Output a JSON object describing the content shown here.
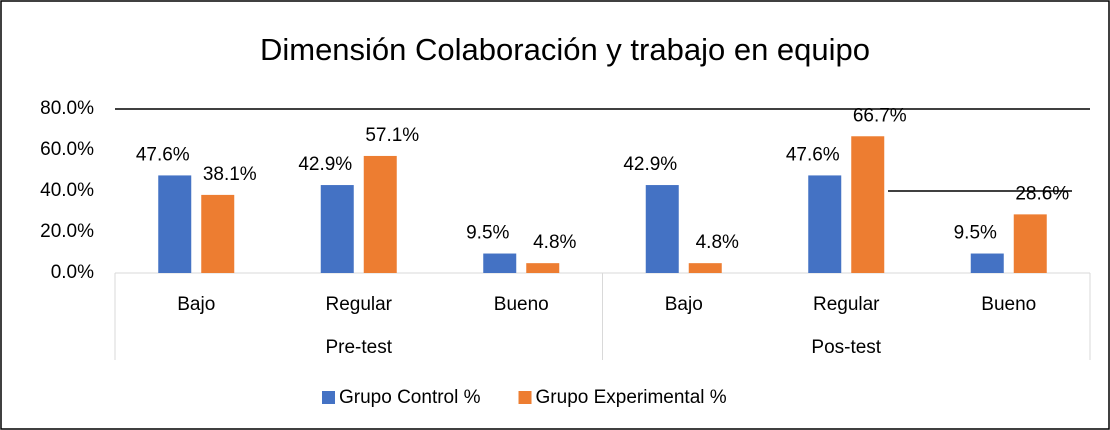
{
  "chart_data": {
    "type": "bar",
    "title": "Dimensión  Colaboración y trabajo en equipo",
    "categories": [
      "Bajo",
      "Regular",
      "Bueno",
      "Bajo",
      "Regular",
      "Bueno"
    ],
    "groups": [
      "Pre-test",
      "Pos-test"
    ],
    "series": [
      {
        "name": "Grupo Control %",
        "color": "#4472c4",
        "values": [
          47.6,
          42.9,
          9.5,
          42.9,
          47.6,
          9.5
        ],
        "value_labels": [
          "47.6%",
          "42.9%",
          "9.5%",
          "42.9%",
          "47.6%",
          "9.5%"
        ]
      },
      {
        "name": "Grupo Experimental %",
        "color": "#ed7d31",
        "values": [
          38.1,
          57.1,
          4.8,
          4.8,
          66.7,
          28.6
        ],
        "value_labels": [
          "38.1%",
          "57.1%",
          "4.8%",
          "4.8%",
          "66.7%",
          "28.6%"
        ]
      }
    ],
    "ylim": [
      0,
      80
    ],
    "yticks": [
      {
        "value": 0,
        "label": "0.0%"
      },
      {
        "value": 20,
        "label": "20.0%"
      },
      {
        "value": 40,
        "label": "40.0%"
      },
      {
        "value": 60,
        "label": "60.0%"
      },
      {
        "value": 80,
        "label": "80.0%"
      }
    ],
    "legend": "bottom"
  }
}
